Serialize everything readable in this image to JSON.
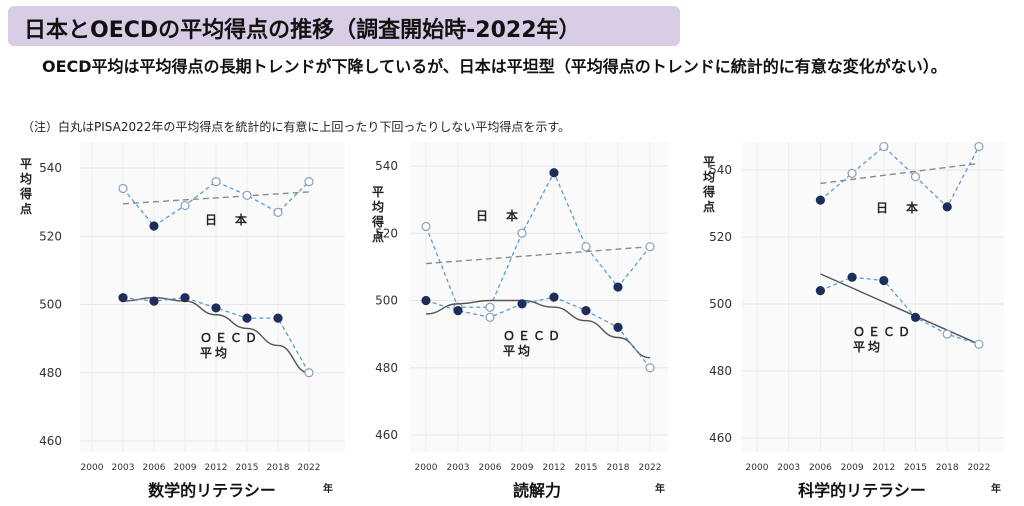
{
  "header": {
    "title": "日本とOECDの平均得点の推移（調査開始時-2022年）",
    "lead": "OECD平均は平均得点の長期トレンドが下降しているが、日本は平坦型（平均得点のトレンドに統計的に有意な変化がない）。",
    "note": "（注）白丸はPISA2022年の平均得点を統計的に有意に上回ったり下回ったりしない平均得点を示す。"
  },
  "y_axis_label": "平均得点",
  "x_unit": "年",
  "chart_data": [
    {
      "type": "line",
      "title": "数学的リテラシー",
      "x": [
        "2000",
        "2003",
        "2006",
        "2009",
        "2012",
        "2015",
        "2018",
        "2022"
      ],
      "ylim": [
        460,
        545
      ],
      "yticks": [
        460,
        480,
        500,
        520,
        540
      ],
      "series": [
        {
          "name": "日　本",
          "color": "#5b9bd5",
          "values": [
            null,
            534,
            523,
            529,
            536,
            532,
            527,
            536
          ],
          "open": [
            false,
            true,
            false,
            true,
            true,
            true,
            true,
            true
          ],
          "trend": [
            529.5,
            533
          ]
        },
        {
          "name": "ＯＥＣＤ平均",
          "color": "#5b9bd5",
          "values": [
            null,
            502,
            501,
            502,
            499,
            496,
            496,
            480
          ],
          "open": [
            false,
            false,
            false,
            false,
            false,
            false,
            false,
            true
          ],
          "trend_curve": [
            null,
            501,
            502,
            501,
            497,
            493,
            488,
            480
          ]
        }
      ]
    },
    {
      "type": "line",
      "title": "読解力",
      "x": [
        "2000",
        "2003",
        "2006",
        "2009",
        "2012",
        "2015",
        "2018",
        "2022"
      ],
      "ylim": [
        455,
        545
      ],
      "yticks": [
        460,
        480,
        500,
        520,
        540
      ],
      "series": [
        {
          "name": "日　本",
          "color": "#5b9bd5",
          "values": [
            522,
            498,
            498,
            520,
            538,
            516,
            504,
            516
          ],
          "open": [
            true,
            true,
            true,
            true,
            false,
            true,
            false,
            true
          ],
          "trend": [
            511,
            516
          ]
        },
        {
          "name": "ＯＥＣＤ平均",
          "color": "#5b9bd5",
          "values": [
            500,
            497,
            495,
            499,
            501,
            497,
            492,
            480
          ],
          "open": [
            false,
            false,
            true,
            false,
            false,
            false,
            false,
            true
          ],
          "trend_curve": [
            496,
            499,
            500,
            500,
            498,
            494,
            489,
            483
          ]
        }
      ]
    },
    {
      "type": "line",
      "title": "科学的リテラシー",
      "x": [
        "2000",
        "2003",
        "2006",
        "2009",
        "2012",
        "2015",
        "2018",
        "2022"
      ],
      "ylim": [
        455,
        550
      ],
      "yticks": [
        460,
        480,
        500,
        520,
        540
      ],
      "series": [
        {
          "name": "日　本",
          "color": "#5b9bd5",
          "values": [
            null,
            null,
            531,
            539,
            547,
            538,
            529,
            547
          ],
          "open": [
            false,
            false,
            false,
            true,
            true,
            true,
            false,
            true
          ],
          "trend": [
            536,
            542
          ]
        },
        {
          "name": "ＯＥＣＤ平均",
          "color": "#5b9bd5",
          "values": [
            null,
            null,
            504,
            508,
            507,
            496,
            491,
            488
          ],
          "open": [
            false,
            false,
            false,
            false,
            false,
            false,
            true,
            true
          ],
          "trend_line": [
            509,
            488
          ]
        }
      ]
    }
  ]
}
